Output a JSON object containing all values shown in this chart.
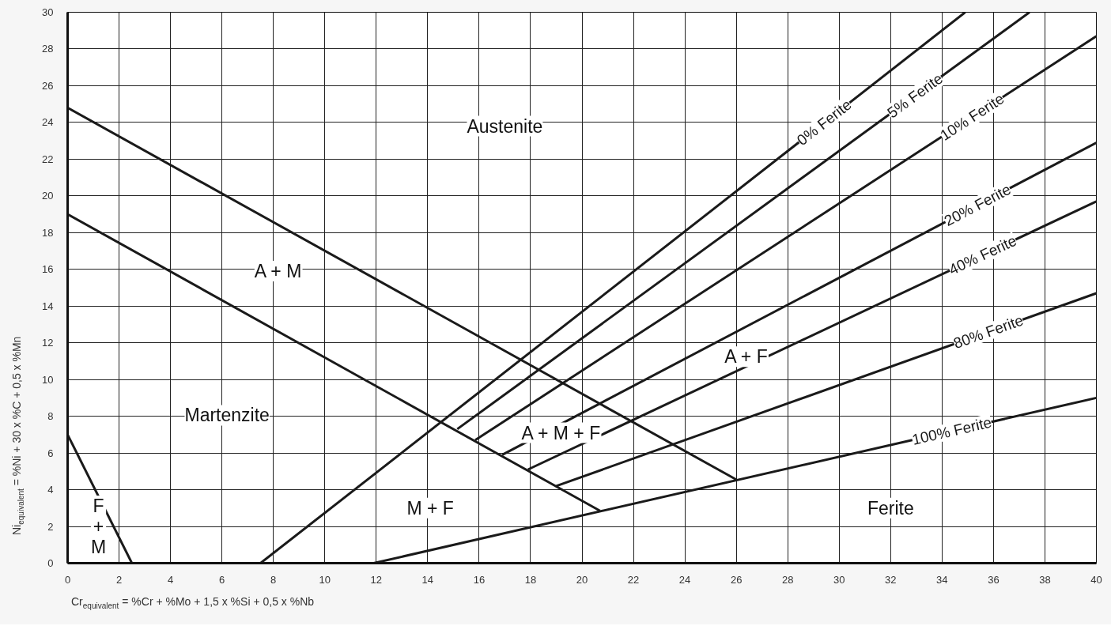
{
  "chart_data": {
    "type": "line",
    "xlabel": "Cr$_{equivalent}$ = %Cr + %Mo + 1,5 x %Si + 0,5 x %Nb",
    "ylabel": "Ni$_{equivalent}$ = %Ni + 30 x %C + 0,5 x %Mn",
    "xlim": [
      0,
      40
    ],
    "ylim": [
      0,
      30
    ],
    "xticks": [
      0,
      2,
      4,
      6,
      8,
      10,
      12,
      14,
      16,
      18,
      20,
      22,
      24,
      26,
      28,
      30,
      32,
      34,
      36,
      38,
      40
    ],
    "yticks": [
      0,
      2,
      4,
      6,
      8,
      10,
      12,
      14,
      16,
      18,
      20,
      22,
      24,
      26,
      28,
      30
    ],
    "grid": true,
    "legend": false,
    "marker": "none",
    "line_style": "solid",
    "series": [
      {
        "color": "#1a1a1a",
        "x": [
          0,
          2.5
        ],
        "values": [
          7,
          0
        ]
      },
      {
        "color": "#1a1a1a",
        "x": [
          0,
          20.7
        ],
        "values": [
          19,
          2.85
        ]
      },
      {
        "color": "#1a1a1a",
        "x": [
          0,
          26.0
        ],
        "values": [
          24.8,
          4.55
        ]
      },
      {
        "name": "0% Ferite",
        "color": "#1a1a1a",
        "x": [
          7.5,
          34.9
        ],
        "values": [
          0,
          30
        ]
      },
      {
        "name": "5% Ferite",
        "color": "#1a1a1a",
        "x": [
          15.15,
          37.4
        ],
        "values": [
          7.3,
          30
        ]
      },
      {
        "name": "10% Ferite",
        "color": "#1a1a1a",
        "x": [
          15.85,
          40
        ],
        "values": [
          6.7,
          28.7
        ]
      },
      {
        "name": "20% Ferite",
        "color": "#1a1a1a",
        "x": [
          16.9,
          40
        ],
        "values": [
          5.9,
          22.9
        ]
      },
      {
        "name": "40% Ferite",
        "color": "#1a1a1a",
        "x": [
          17.9,
          40
        ],
        "values": [
          5.1,
          19.7
        ]
      },
      {
        "name": "80% Ferite",
        "color": "#1a1a1a",
        "x": [
          19.0,
          40
        ],
        "values": [
          4.2,
          14.7
        ]
      },
      {
        "name": "100% Ferite",
        "color": "#1a1a1a",
        "x": [
          11.9,
          40
        ],
        "values": [
          0,
          9.0
        ]
      }
    ],
    "annotations": [
      "Austenite",
      "A + M",
      "Martenzite",
      "M + F",
      "Ferite",
      "A + M + F",
      "A + F",
      "F\n+\nM"
    ]
  }
}
